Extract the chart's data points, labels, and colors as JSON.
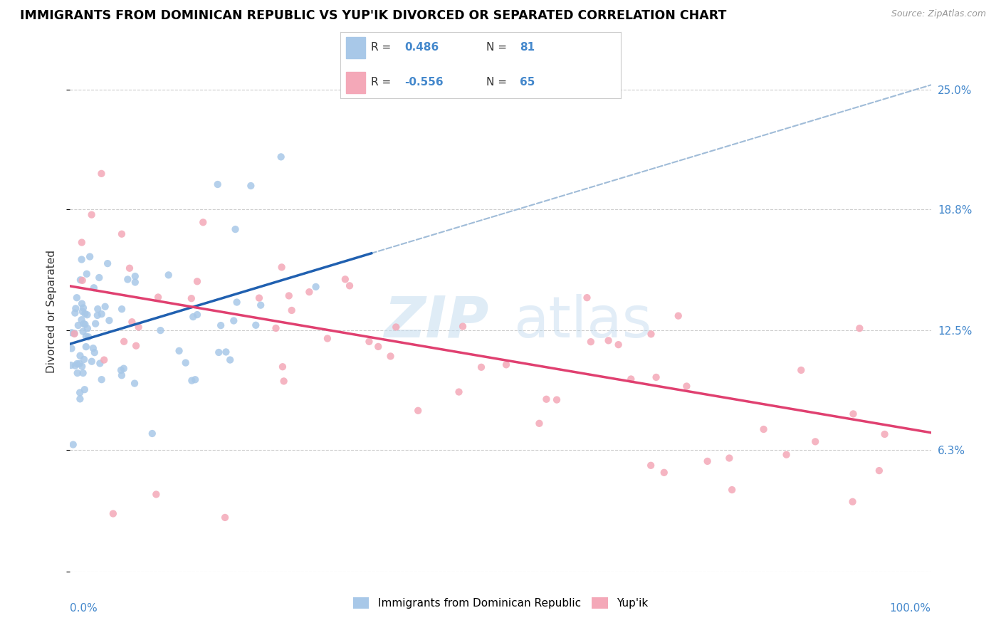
{
  "title": "IMMIGRANTS FROM DOMINICAN REPUBLIC VS YUP'IK DIVORCED OR SEPARATED CORRELATION CHART",
  "source": "Source: ZipAtlas.com",
  "ylabel": "Divorced or Separated",
  "ytick_vals": [
    0.0,
    0.063,
    0.125,
    0.188,
    0.25
  ],
  "ytick_labels": [
    "",
    "6.3%",
    "12.5%",
    "18.8%",
    "25.0%"
  ],
  "r_blue": 0.486,
  "n_blue": 81,
  "r_pink": -0.556,
  "n_pink": 65,
  "blue_color": "#a8c8e8",
  "pink_color": "#f4a8b8",
  "blue_line_color": "#2060b0",
  "pink_line_color": "#e04070",
  "dashed_line_color": "#a0bcd8",
  "legend_blue_label": "Immigrants from Dominican Republic",
  "legend_pink_label": "Yup'ik",
  "xlim": [
    0.0,
    1.0
  ],
  "ylim": [
    0.0,
    0.27
  ],
  "blue_line_x": [
    0.0,
    0.35
  ],
  "blue_line_y": [
    0.118,
    0.165
  ],
  "pink_line_x": [
    0.0,
    1.0
  ],
  "pink_line_y": [
    0.148,
    0.072
  ]
}
